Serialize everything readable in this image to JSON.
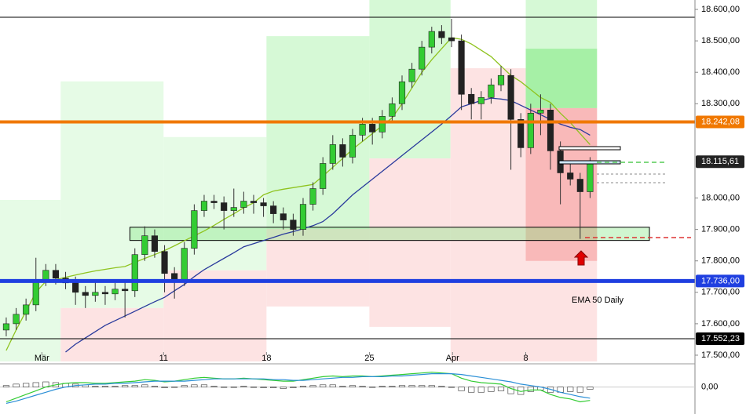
{
  "chart_data": {
    "type": "candlestick",
    "xlim": [
      -0.63,
      69.6
    ],
    "ylim": [
      17480,
      18630
    ],
    "xticks": [
      {
        "value": 3.6,
        "label": "Mär"
      },
      {
        "value": 15.9,
        "label": "11"
      },
      {
        "value": 26.3,
        "label": "18"
      },
      {
        "value": 36.7,
        "label": "25"
      },
      {
        "value": 45.1,
        "label": "Apr"
      },
      {
        "value": 52.5,
        "label": "8"
      }
    ],
    "yticks": [
      {
        "value": 18600,
        "label": "18.600,00"
      },
      {
        "value": 18500,
        "label": "18.500,00"
      },
      {
        "value": 18400,
        "label": "18.400,00"
      },
      {
        "value": 18300,
        "label": "18.300,00"
      },
      {
        "value": 18000,
        "label": "18.000,00"
      },
      {
        "value": 17900,
        "label": "17.900,00"
      },
      {
        "value": 17800,
        "label": "17.800,00"
      },
      {
        "value": 17700,
        "label": "17.700,00"
      },
      {
        "value": 17600,
        "label": "17.600,00"
      },
      {
        "value": 17500,
        "label": "17.500,00"
      }
    ],
    "up_color": "#33cc33",
    "down_color": "#222222",
    "candles": [
      [
        17580,
        17620,
        17560,
        17600
      ],
      [
        17600,
        17650,
        17580,
        17630
      ],
      [
        17630,
        17680,
        17610,
        17660
      ],
      [
        17660,
        17810,
        17640,
        17740
      ],
      [
        17740,
        17790,
        17720,
        17770
      ],
      [
        17770,
        17790,
        17725,
        17745
      ],
      [
        17745,
        17765,
        17710,
        17730
      ],
      [
        17730,
        17750,
        17660,
        17700
      ],
      [
        17700,
        17720,
        17650,
        17690
      ],
      [
        17690,
        17740,
        17670,
        17700
      ],
      [
        17700,
        17720,
        17660,
        17695
      ],
      [
        17695,
        17730,
        17675,
        17710
      ],
      [
        17710,
        17740,
        17620,
        17705
      ],
      [
        17705,
        17840,
        17685,
        17820
      ],
      [
        17820,
        17910,
        17800,
        17880
      ],
      [
        17880,
        17900,
        17810,
        17830
      ],
      [
        17830,
        17850,
        17700,
        17760
      ],
      [
        17760,
        17780,
        17680,
        17740
      ],
      [
        17740,
        17860,
        17720,
        17840
      ],
      [
        17840,
        17980,
        17820,
        17960
      ],
      [
        17960,
        18010,
        17940,
        17990
      ],
      [
        17990,
        18010,
        17965,
        17985
      ],
      [
        17985,
        18005,
        17900,
        17960
      ],
      [
        17960,
        18030,
        17940,
        17970
      ],
      [
        17970,
        18020,
        17950,
        17990
      ],
      [
        17990,
        18010,
        17950,
        17985
      ],
      [
        17985,
        18000,
        17940,
        17975
      ],
      [
        17975,
        17990,
        17920,
        17950
      ],
      [
        17950,
        17970,
        17900,
        17930
      ],
      [
        17930,
        17950,
        17880,
        17900
      ],
      [
        17900,
        18000,
        17880,
        17980
      ],
      [
        17980,
        18050,
        17960,
        18030
      ],
      [
        18030,
        18130,
        18010,
        18110
      ],
      [
        18110,
        18200,
        18090,
        18170
      ],
      [
        18170,
        18190,
        18100,
        18130
      ],
      [
        18130,
        18220,
        18110,
        18200
      ],
      [
        18200,
        18255,
        18180,
        18235
      ],
      [
        18235,
        18255,
        18170,
        18210
      ],
      [
        18210,
        18280,
        18190,
        18260
      ],
      [
        18260,
        18320,
        18240,
        18300
      ],
      [
        18300,
        18390,
        18280,
        18370
      ],
      [
        18370,
        18430,
        18350,
        18410
      ],
      [
        18410,
        18500,
        18390,
        18480
      ],
      [
        18480,
        18545,
        18460,
        18530
      ],
      [
        18530,
        18550,
        18490,
        18510
      ],
      [
        18510,
        18570,
        18480,
        18500
      ],
      [
        18500,
        18520,
        18280,
        18330
      ],
      [
        18330,
        18350,
        18250,
        18300
      ],
      [
        18300,
        18340,
        18250,
        18320
      ],
      [
        18320,
        18380,
        18300,
        18360
      ],
      [
        18360,
        18420,
        18340,
        18390
      ],
      [
        18390,
        18410,
        18090,
        18250
      ],
      [
        18250,
        18270,
        18130,
        18160
      ],
      [
        18160,
        18300,
        18140,
        18270
      ],
      [
        18270,
        18330,
        18200,
        18280
      ],
      [
        18280,
        18300,
        18090,
        18150
      ],
      [
        18150,
        18180,
        17980,
        18080
      ],
      [
        18080,
        18120,
        18040,
        18060
      ],
      [
        18060,
        18080,
        17870,
        18020
      ],
      [
        18020,
        18130,
        18000,
        18110
      ]
    ],
    "series": [
      {
        "color": "#8fc31f",
        "values": [
          17515,
          17580,
          17640,
          17700,
          17735,
          17740,
          17748,
          17755,
          17762,
          17768,
          17773,
          17778,
          17782,
          17795,
          17808,
          17820,
          17833,
          17848,
          17864,
          17880,
          17895,
          17913,
          17932,
          17950,
          17969,
          17985,
          18010,
          18022,
          18028,
          18033,
          18038,
          18043,
          18070,
          18098,
          18126,
          18155,
          18180,
          18205,
          18230,
          18255,
          18300,
          18350,
          18400,
          18440,
          18475,
          18510,
          18505,
          18490,
          18470,
          18450,
          18420,
          18390,
          18370,
          18345,
          18320,
          18304,
          18270,
          18240,
          18205,
          18170
        ]
      },
      {
        "color": "#2a3a9c",
        "values": [
          null,
          null,
          null,
          null,
          null,
          null,
          17510,
          17535,
          17555,
          17575,
          17595,
          17610,
          17625,
          17640,
          17655,
          17670,
          17684,
          17705,
          17725,
          17750,
          17772,
          17790,
          17808,
          17826,
          17845,
          17855,
          17865,
          17875,
          17885,
          17893,
          17902,
          17912,
          17925,
          17950,
          17980,
          18010,
          18035,
          18060,
          18085,
          18110,
          18135,
          18160,
          18185,
          18210,
          18235,
          18262,
          18290,
          18300,
          18310,
          18318,
          18315,
          18310,
          18295,
          18280,
          18265,
          18250,
          18235,
          18225,
          18218,
          18200
        ]
      }
    ],
    "zones": [
      {
        "x": [
          -0.63,
          5.5
        ],
        "y": [
          17480,
          17994
        ],
        "color": "#e6fbe6"
      },
      {
        "x": [
          5.5,
          15.9
        ],
        "y": [
          17650,
          18371
        ],
        "color": "#e6fbe6"
      },
      {
        "x": [
          5.5,
          15.9
        ],
        "y": [
          17480,
          17650
        ],
        "color": "#fde3e3"
      },
      {
        "x": [
          15.9,
          26.3
        ],
        "y": [
          17770,
          18194
        ],
        "color": "#e6fbe6"
      },
      {
        "x": [
          15.9,
          26.3
        ],
        "y": [
          17480,
          17770
        ],
        "color": "#fde3e3"
      },
      {
        "x": [
          26.3,
          36.7
        ],
        "y": [
          17902,
          18515
        ],
        "color": "#d6f9d6"
      },
      {
        "x": [
          26.3,
          36.7
        ],
        "y": [
          17655,
          17902
        ],
        "color": "#fde3e3"
      },
      {
        "x": [
          36.7,
          44.9
        ],
        "y": [
          18126,
          18630
        ],
        "color": "#d6f9d6"
      },
      {
        "x": [
          36.7,
          44.9
        ],
        "y": [
          17590,
          18126
        ],
        "color": "#fde3e3"
      },
      {
        "x": [
          44.9,
          52.5
        ],
        "y": [
          17480,
          18413
        ],
        "color": "#fde3e3"
      },
      {
        "x": [
          52.5,
          59.7
        ],
        "y": [
          18286,
          18630
        ],
        "color": "#d6f9d6"
      },
      {
        "x": [
          52.5,
          59.7
        ],
        "y": [
          17480,
          18286
        ],
        "color": "#fde3e3"
      },
      {
        "x": [
          52.5,
          59.7
        ],
        "y": [
          18286,
          18475
        ],
        "color": "#a6f0a6"
      },
      {
        "x": [
          52.5,
          59.7
        ],
        "y": [
          17800,
          18286
        ],
        "color": "#f9b9b9"
      }
    ],
    "box": {
      "x": [
        12.5,
        65
      ],
      "y": [
        17865,
        17907
      ]
    },
    "levels": [
      {
        "value": 18575,
        "color": "#000000",
        "width": 1
      },
      {
        "value": 18242.08,
        "label": "18.242,08",
        "color": "#f07800",
        "width": 4
      },
      {
        "value": 18115.61,
        "label": "18.115,61",
        "color": "#222222",
        "width": 0
      },
      {
        "value": 17736,
        "label": "17.736,00",
        "color": "#1f3fe0",
        "width": 5
      },
      {
        "value": 17552.23,
        "label": "17.552,23",
        "color": "#000000",
        "width": 1
      }
    ],
    "annotation": "EMA 50 Daily",
    "indicator": {
      "ylim": [
        -30,
        25
      ],
      "zero": {
        "value": 0,
        "label": "0,00"
      },
      "hist": [
        2,
        4,
        5,
        6,
        7,
        6,
        5,
        4,
        3,
        1,
        1,
        1,
        2,
        2,
        3,
        1,
        -1,
        0,
        2,
        3,
        3,
        1,
        0,
        0,
        1,
        0,
        -1,
        -1,
        -2,
        -1,
        1,
        2,
        3,
        3,
        1,
        2,
        1,
        0,
        1,
        1,
        2,
        2,
        2,
        2,
        1,
        0,
        -5,
        -7,
        -7,
        -6,
        -5,
        -9,
        -10,
        -6,
        -4,
        -7,
        -7,
        -6,
        -7,
        -3
      ],
      "lines": [
        {
          "color": "#33cc33",
          "values": [
            -20,
            -15,
            -10,
            -5,
            0,
            3,
            5,
            6,
            6,
            5,
            5,
            6,
            7,
            8,
            10,
            9,
            7,
            8,
            10,
            12,
            13,
            12,
            11,
            11,
            12,
            11,
            10,
            9,
            8,
            8,
            10,
            12,
            14,
            15,
            14,
            15,
            15,
            14,
            15,
            16,
            17,
            18,
            19,
            20,
            19,
            18,
            12,
            8,
            6,
            5,
            4,
            -2,
            -6,
            -4,
            -4,
            -10,
            -14,
            -16,
            -20,
            -18
          ]
        },
        {
          "color": "#2a8fd6",
          "values": [
            -22,
            -19,
            -15,
            -11,
            -7,
            -3,
            0,
            2,
            3,
            4,
            4,
            5,
            5,
            6,
            7,
            8,
            8,
            8,
            8,
            9,
            10,
            11,
            11,
            11,
            11,
            11,
            11,
            10,
            10,
            9,
            9,
            10,
            11,
            12,
            13,
            13,
            14,
            14,
            14,
            15,
            15,
            16,
            17,
            18,
            18,
            18,
            17,
            15,
            13,
            11,
            9,
            7,
            4,
            2,
            0,
            -3,
            -7,
            -10,
            -13,
            -15
          ]
        }
      ]
    }
  }
}
